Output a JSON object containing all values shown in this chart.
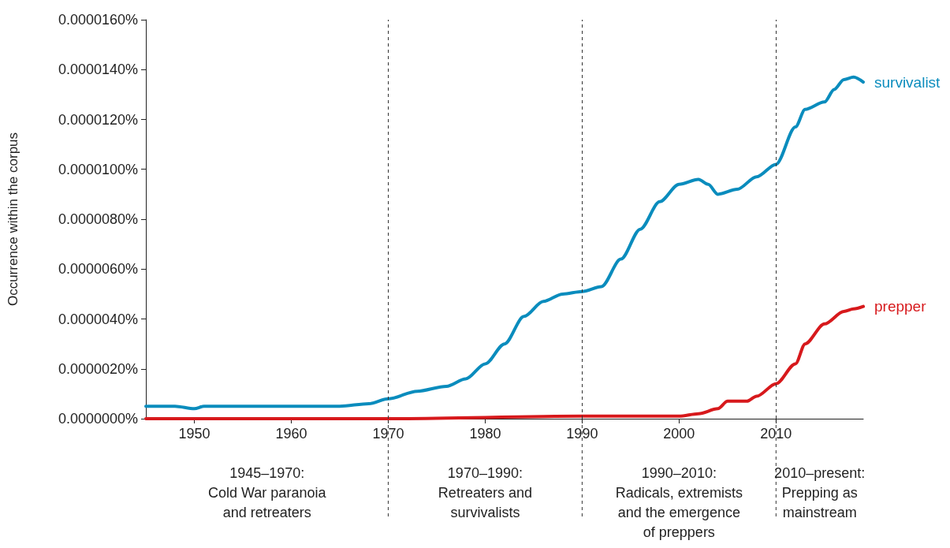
{
  "chart_data": {
    "type": "line",
    "ylabel": "Occurrence within the corpus",
    "x": [
      1945,
      1948,
      1950,
      1951,
      1955,
      1960,
      1965,
      1968,
      1970,
      1973,
      1976,
      1978,
      1980,
      1982,
      1984,
      1986,
      1988,
      1990,
      1992,
      1994,
      1996,
      1998,
      2000,
      2002,
      2003,
      2004,
      2006,
      2008,
      2010,
      2012,
      2013,
      2015,
      2016,
      2017,
      2018,
      2019
    ],
    "series": [
      {
        "name": "survivalist",
        "color": "#0a8cbd",
        "values": [
          5e-07,
          5e-07,
          4e-07,
          5e-07,
          5e-07,
          5e-07,
          5e-07,
          6e-07,
          8e-07,
          1.1e-06,
          1.3e-06,
          1.6e-06,
          2.2e-06,
          3e-06,
          4.1e-06,
          4.7e-06,
          5e-06,
          5.1e-06,
          5.3e-06,
          6.4e-06,
          7.6e-06,
          8.7e-06,
          9.4e-06,
          9.6e-06,
          9.4e-06,
          9e-06,
          9.2e-06,
          9.7e-06,
          1.02e-05,
          1.17e-05,
          1.24e-05,
          1.27e-05,
          1.32e-05,
          1.36e-05,
          1.37e-05,
          1.35e-05
        ]
      },
      {
        "name": "prepper",
        "color": "#d7191c",
        "x": [
          1945,
          1970,
          1990,
          2000,
          2002,
          2004,
          2005,
          2007,
          2008,
          2010,
          2012,
          2013,
          2015,
          2017,
          2018,
          2019
        ],
        "values": [
          0,
          0,
          1e-07,
          1e-07,
          2e-07,
          4e-07,
          7e-07,
          7e-07,
          9e-07,
          1.4e-06,
          2.2e-06,
          3e-06,
          3.8e-06,
          4.3e-06,
          4.4e-06,
          4.5e-06
        ]
      }
    ],
    "xlim": [
      1945,
      2019
    ],
    "xticks": [
      1950,
      1960,
      1970,
      1980,
      1990,
      2000,
      2010
    ],
    "ylim": [
      0,
      1.6e-05
    ],
    "yticks": [
      {
        "value": 0,
        "label": "0.0000000%"
      },
      {
        "value": 2e-06,
        "label": "0.0000020%"
      },
      {
        "value": 4e-06,
        "label": "0.0000040%"
      },
      {
        "value": 6e-06,
        "label": "0.0000060%"
      },
      {
        "value": 8e-06,
        "label": "0.0000080%"
      },
      {
        "value": 1e-05,
        "label": "0.0000100%"
      },
      {
        "value": 1.2e-05,
        "label": "0.0000120%"
      },
      {
        "value": 1.4e-05,
        "label": "0.0000140%"
      },
      {
        "value": 1.6e-05,
        "label": "0.0000160%"
      }
    ],
    "ref_lines": [
      {
        "axis": "x",
        "value": 1970,
        "label": null,
        "line_style": "dashed",
        "color": "#333333"
      },
      {
        "axis": "x",
        "value": 1990,
        "label": null,
        "line_style": "dashed",
        "color": "#333333"
      },
      {
        "axis": "x",
        "value": 2010,
        "label": null,
        "line_style": "dashed",
        "color": "#333333"
      }
    ],
    "annotations": [
      "1945–1970:\nCold War paranoia\nand retreaters",
      "1970–1990:\nRetreaters and\nsurvivalists",
      "1990–2010:\nRadicals, extremists\nand the emergence\nof preppers",
      "2010–present:\nPrepping as\nmainstream"
    ],
    "grid": false,
    "legend": false,
    "marker": "none",
    "line_style": "solid"
  }
}
